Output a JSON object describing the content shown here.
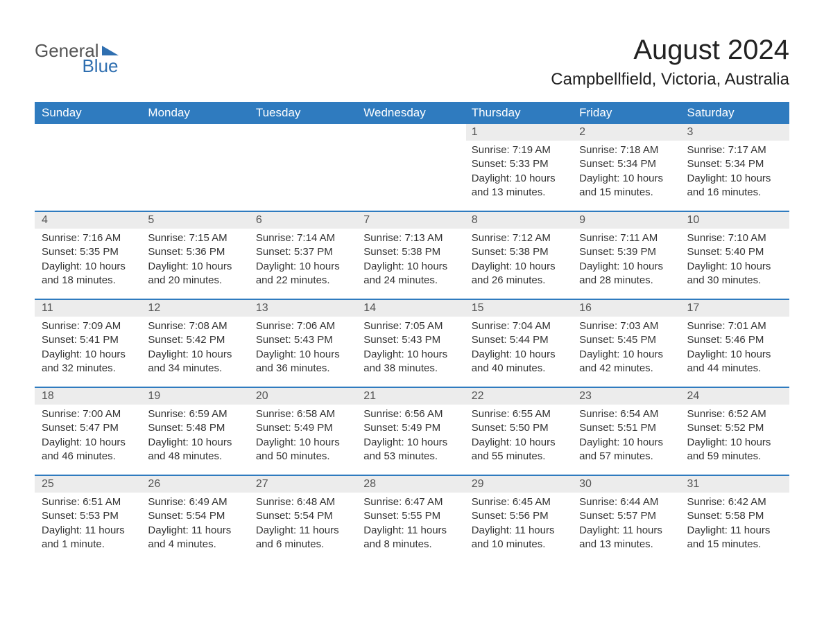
{
  "logo": {
    "word1": "General",
    "word2": "Blue"
  },
  "title": "August 2024",
  "location": "Campbellfield, Victoria, Australia",
  "header_bg": "#2f7bbf",
  "header_fg": "#ffffff",
  "daynum_bg": "#ececec",
  "border_color": "#2f7bbf",
  "day_headers": [
    "Sunday",
    "Monday",
    "Tuesday",
    "Wednesday",
    "Thursday",
    "Friday",
    "Saturday"
  ],
  "weeks": [
    {
      "days": [
        null,
        null,
        null,
        null,
        {
          "n": "1",
          "sunrise": "7:19 AM",
          "sunset": "5:33 PM",
          "daylight": "10 hours and 13 minutes."
        },
        {
          "n": "2",
          "sunrise": "7:18 AM",
          "sunset": "5:34 PM",
          "daylight": "10 hours and 15 minutes."
        },
        {
          "n": "3",
          "sunrise": "7:17 AM",
          "sunset": "5:34 PM",
          "daylight": "10 hours and 16 minutes."
        }
      ]
    },
    {
      "days": [
        {
          "n": "4",
          "sunrise": "7:16 AM",
          "sunset": "5:35 PM",
          "daylight": "10 hours and 18 minutes."
        },
        {
          "n": "5",
          "sunrise": "7:15 AM",
          "sunset": "5:36 PM",
          "daylight": "10 hours and 20 minutes."
        },
        {
          "n": "6",
          "sunrise": "7:14 AM",
          "sunset": "5:37 PM",
          "daylight": "10 hours and 22 minutes."
        },
        {
          "n": "7",
          "sunrise": "7:13 AM",
          "sunset": "5:38 PM",
          "daylight": "10 hours and 24 minutes."
        },
        {
          "n": "8",
          "sunrise": "7:12 AM",
          "sunset": "5:38 PM",
          "daylight": "10 hours and 26 minutes."
        },
        {
          "n": "9",
          "sunrise": "7:11 AM",
          "sunset": "5:39 PM",
          "daylight": "10 hours and 28 minutes."
        },
        {
          "n": "10",
          "sunrise": "7:10 AM",
          "sunset": "5:40 PM",
          "daylight": "10 hours and 30 minutes."
        }
      ]
    },
    {
      "days": [
        {
          "n": "11",
          "sunrise": "7:09 AM",
          "sunset": "5:41 PM",
          "daylight": "10 hours and 32 minutes."
        },
        {
          "n": "12",
          "sunrise": "7:08 AM",
          "sunset": "5:42 PM",
          "daylight": "10 hours and 34 minutes."
        },
        {
          "n": "13",
          "sunrise": "7:06 AM",
          "sunset": "5:43 PM",
          "daylight": "10 hours and 36 minutes."
        },
        {
          "n": "14",
          "sunrise": "7:05 AM",
          "sunset": "5:43 PM",
          "daylight": "10 hours and 38 minutes."
        },
        {
          "n": "15",
          "sunrise": "7:04 AM",
          "sunset": "5:44 PM",
          "daylight": "10 hours and 40 minutes."
        },
        {
          "n": "16",
          "sunrise": "7:03 AM",
          "sunset": "5:45 PM",
          "daylight": "10 hours and 42 minutes."
        },
        {
          "n": "17",
          "sunrise": "7:01 AM",
          "sunset": "5:46 PM",
          "daylight": "10 hours and 44 minutes."
        }
      ]
    },
    {
      "days": [
        {
          "n": "18",
          "sunrise": "7:00 AM",
          "sunset": "5:47 PM",
          "daylight": "10 hours and 46 minutes."
        },
        {
          "n": "19",
          "sunrise": "6:59 AM",
          "sunset": "5:48 PM",
          "daylight": "10 hours and 48 minutes."
        },
        {
          "n": "20",
          "sunrise": "6:58 AM",
          "sunset": "5:49 PM",
          "daylight": "10 hours and 50 minutes."
        },
        {
          "n": "21",
          "sunrise": "6:56 AM",
          "sunset": "5:49 PM",
          "daylight": "10 hours and 53 minutes."
        },
        {
          "n": "22",
          "sunrise": "6:55 AM",
          "sunset": "5:50 PM",
          "daylight": "10 hours and 55 minutes."
        },
        {
          "n": "23",
          "sunrise": "6:54 AM",
          "sunset": "5:51 PM",
          "daylight": "10 hours and 57 minutes."
        },
        {
          "n": "24",
          "sunrise": "6:52 AM",
          "sunset": "5:52 PM",
          "daylight": "10 hours and 59 minutes."
        }
      ]
    },
    {
      "days": [
        {
          "n": "25",
          "sunrise": "6:51 AM",
          "sunset": "5:53 PM",
          "daylight": "11 hours and 1 minute."
        },
        {
          "n": "26",
          "sunrise": "6:49 AM",
          "sunset": "5:54 PM",
          "daylight": "11 hours and 4 minutes."
        },
        {
          "n": "27",
          "sunrise": "6:48 AM",
          "sunset": "5:54 PM",
          "daylight": "11 hours and 6 minutes."
        },
        {
          "n": "28",
          "sunrise": "6:47 AM",
          "sunset": "5:55 PM",
          "daylight": "11 hours and 8 minutes."
        },
        {
          "n": "29",
          "sunrise": "6:45 AM",
          "sunset": "5:56 PM",
          "daylight": "11 hours and 10 minutes."
        },
        {
          "n": "30",
          "sunrise": "6:44 AM",
          "sunset": "5:57 PM",
          "daylight": "11 hours and 13 minutes."
        },
        {
          "n": "31",
          "sunrise": "6:42 AM",
          "sunset": "5:58 PM",
          "daylight": "11 hours and 15 minutes."
        }
      ]
    }
  ],
  "labels": {
    "sunrise": "Sunrise: ",
    "sunset": "Sunset: ",
    "daylight": "Daylight: "
  }
}
